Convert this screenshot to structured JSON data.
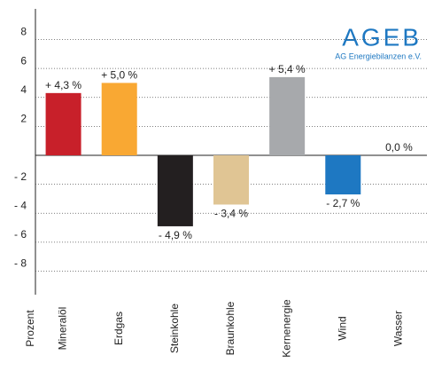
{
  "chart_data": {
    "type": "bar",
    "y_label": "Prozent",
    "categories": [
      "Mineralöl",
      "Erdgas",
      "Steinkohle",
      "Braunkohle",
      "Kernenergie",
      "Wind",
      "Wasser"
    ],
    "values": [
      4.3,
      5.0,
      -4.9,
      -3.4,
      5.4,
      -2.7,
      0.0
    ],
    "value_labels": [
      "+ 4,3 %",
      "+ 5,0 %",
      "- 4,9 %",
      "- 3,4 %",
      "+ 5,4 %",
      "- 2,7 %",
      "0,0 %"
    ],
    "colors": [
      "#c8202a",
      "#f9a833",
      "#231f20",
      "#e0c594",
      "#a7a9ac",
      "#1e78c2",
      "#ffffff"
    ],
    "ylim": [
      -9.5,
      9.5
    ],
    "yticks": [
      8,
      6,
      4,
      2,
      {
        "value": -2,
        "label": "- 2"
      },
      {
        "value": -4,
        "label": "- 4"
      },
      {
        "value": -6,
        "label": "- 6"
      },
      {
        "value": -8,
        "label": "- 8"
      }
    ],
    "grid": true,
    "logo": {
      "title": "AGEB",
      "subtitle": "AG Energiebilanzen e.V."
    }
  }
}
